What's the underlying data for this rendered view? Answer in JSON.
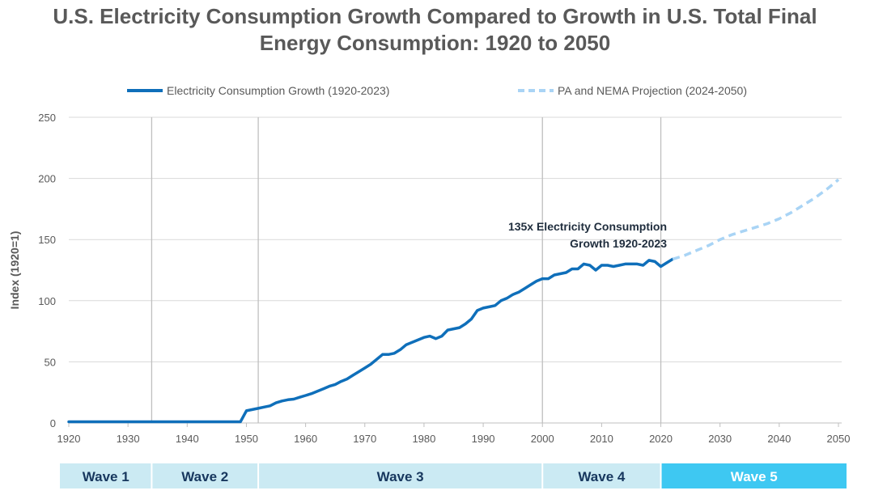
{
  "chart_data": {
    "type": "line",
    "title_line1": "U.S. Electricity Consumption Growth Compared to Growth in U.S. Total Final",
    "title_line2": "Energy Consumption: 1920 to 2050",
    "ylabel": "Index (1920=1)",
    "xlabel": "",
    "xlim": [
      1920,
      2050
    ],
    "ylim": [
      0,
      250
    ],
    "x_ticks": [
      "1920",
      "1930",
      "1940",
      "1950",
      "1960",
      "1970",
      "1980",
      "1990",
      "2000",
      "2010",
      "2020",
      "2030",
      "2040",
      "2050"
    ],
    "y_ticks": [
      "0",
      "50",
      "100",
      "150",
      "200",
      "250"
    ],
    "grid": "horizontal",
    "legend_placement": "top",
    "series": [
      {
        "name": "Electricity Consumption Growth (1920-2023)",
        "style": "solid",
        "color": "#0f6fba",
        "x": [
          1920,
          1925,
          1930,
          1935,
          1940,
          1945,
          1948,
          1949,
          1950,
          1951,
          1952,
          1953,
          1954,
          1955,
          1956,
          1957,
          1958,
          1959,
          1960,
          1961,
          1962,
          1963,
          1964,
          1965,
          1966,
          1967,
          1968,
          1969,
          1970,
          1971,
          1972,
          1973,
          1974,
          1975,
          1976,
          1977,
          1978,
          1979,
          1980,
          1981,
          1982,
          1983,
          1984,
          1985,
          1986,
          1987,
          1988,
          1989,
          1990,
          1991,
          1992,
          1993,
          1994,
          1995,
          1996,
          1997,
          1998,
          1999,
          2000,
          2001,
          2002,
          2003,
          2004,
          2005,
          2006,
          2007,
          2008,
          2009,
          2010,
          2011,
          2012,
          2013,
          2014,
          2015,
          2016,
          2017,
          2018,
          2019,
          2020,
          2021,
          2022
        ],
        "values": [
          1,
          1,
          1,
          1,
          1,
          1,
          1,
          1,
          10,
          11,
          12,
          13,
          14,
          16.5,
          18,
          19,
          19.5,
          21,
          22.5,
          24,
          26,
          28,
          30,
          31.5,
          34,
          36,
          39,
          42,
          45,
          48,
          52,
          56,
          56,
          57,
          60,
          64,
          66,
          68,
          70,
          71,
          69,
          71,
          76,
          77,
          78,
          81,
          85,
          92,
          94,
          95,
          96,
          100,
          102,
          105,
          107,
          110,
          113,
          116,
          118,
          118,
          121,
          122,
          123,
          126,
          126,
          130,
          129,
          125,
          129,
          129,
          128,
          129,
          130,
          130,
          130,
          129,
          133,
          132,
          128,
          131,
          134
        ]
      },
      {
        "name": "PA and NEMA Projection  (2024-2050)",
        "style": "dashed",
        "color": "#a9d4f5",
        "x": [
          2022,
          2024,
          2026,
          2028,
          2030,
          2032,
          2034,
          2036,
          2038,
          2040,
          2042,
          2044,
          2046,
          2048,
          2050
        ],
        "values": [
          134,
          137,
          141,
          145,
          150,
          154,
          157,
          160,
          163,
          167,
          172,
          178,
          184,
          191,
          199
        ]
      }
    ],
    "vertical_markers": [
      1934,
      1952,
      2000,
      2020
    ],
    "annotation": {
      "line1": "135x Electricity Consumption",
      "line2": "Growth 1920-2023"
    },
    "waves": [
      {
        "label": "Wave 1",
        "start": 1920,
        "end": 1934,
        "color": "#cbeaf3",
        "text_color": "#17375e"
      },
      {
        "label": "Wave 2",
        "start": 1934,
        "end": 1952,
        "color": "#cbeaf3",
        "text_color": "#17375e"
      },
      {
        "label": "Wave 3",
        "start": 1952,
        "end": 2000,
        "color": "#cbeaf3",
        "text_color": "#17375e"
      },
      {
        "label": "Wave 4",
        "start": 2000,
        "end": 2020,
        "color": "#cbeaf3",
        "text_color": "#17375e"
      },
      {
        "label": "Wave 5",
        "start": 2020,
        "end": 2050,
        "color": "#3ec8f2",
        "text_color": "#ffffff"
      }
    ]
  }
}
